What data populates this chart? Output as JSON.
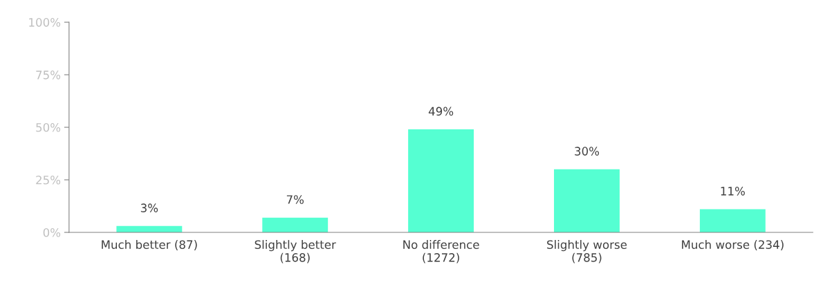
{
  "chart_data": {
    "type": "bar",
    "categories": [
      "Much better (87)",
      "Slightly better\n(168)",
      "No difference\n(1272)",
      "Slightly worse\n(785)",
      "Much worse (234)"
    ],
    "values": [
      3,
      7,
      49,
      30,
      11
    ],
    "value_labels": [
      "3%",
      "7%",
      "49%",
      "30%",
      "11%"
    ],
    "color": "#55ffd2",
    "ylim": [
      0,
      100
    ],
    "yticks": [
      {
        "value": 0,
        "label": "0%"
      },
      {
        "value": 25,
        "label": "25%"
      },
      {
        "value": 50,
        "label": "50%"
      },
      {
        "value": 75,
        "label": "75%"
      },
      {
        "value": 100,
        "label": "100%"
      }
    ],
    "grid": false,
    "legend": false
  }
}
